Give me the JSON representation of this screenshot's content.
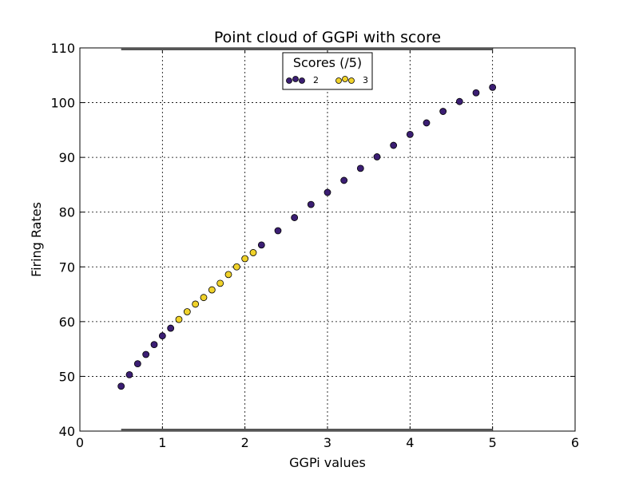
{
  "chart_data": {
    "type": "scatter",
    "title": "Point cloud of GGPi with score",
    "xlabel": "GGPi values",
    "ylabel": "Firing Rates",
    "xlim": [
      0,
      6
    ],
    "ylim": [
      40,
      110
    ],
    "xticks": [
      "0",
      "1",
      "2",
      "3",
      "4",
      "5",
      "6"
    ],
    "yticks": [
      "40",
      "50",
      "60",
      "70",
      "80",
      "90",
      "100",
      "110"
    ],
    "grid": true,
    "legend": {
      "title": "Scores (/5)",
      "placement": "top-center"
    },
    "series": [
      {
        "name": "2",
        "color": "#3b1e73",
        "x": [
          0.5,
          0.6,
          0.7,
          0.8,
          0.9,
          1.0,
          1.1,
          2.2,
          2.4,
          2.6,
          2.8,
          3.0,
          3.2,
          3.4,
          3.6,
          3.8,
          4.0,
          4.2,
          4.4,
          4.6,
          4.8,
          5.0
        ],
        "y": [
          48.2,
          50.3,
          52.3,
          54.0,
          55.8,
          57.4,
          58.8,
          74.0,
          76.6,
          79.0,
          81.4,
          83.6,
          85.8,
          88.0,
          90.1,
          92.2,
          94.2,
          96.3,
          98.4,
          100.2,
          101.8,
          102.8
        ]
      },
      {
        "name": "3",
        "color": "#f0d22a",
        "x": [
          1.2,
          1.3,
          1.4,
          1.5,
          1.6,
          1.7,
          1.8,
          1.9,
          2.0,
          2.1
        ],
        "y": [
          60.4,
          61.8,
          63.2,
          64.4,
          65.8,
          67.0,
          68.6,
          70.0,
          71.5,
          72.6
        ]
      }
    ]
  }
}
